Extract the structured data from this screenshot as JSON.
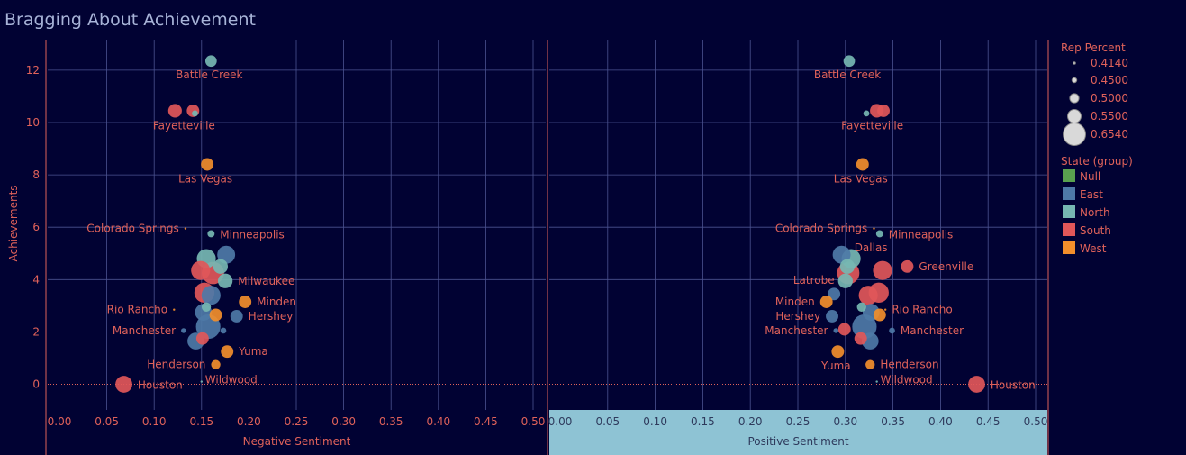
{
  "title": "Bragging About Achievement",
  "colors": {
    "background": "#010233",
    "grid": "#4b5290",
    "axis_text": "#e0625a",
    "highlight_band": "#8ec3d4",
    "Null": "#59a14f",
    "East": "#4e79a7",
    "North": "#76b7b2",
    "South": "#e15759",
    "West": "#f28e2b"
  },
  "legend": {
    "size_title": "Rep Percent",
    "size_items": [
      "0.4140",
      "0.4500",
      "0.5000",
      "0.5500",
      "0.6540"
    ],
    "color_title": "State (group)",
    "color_items": [
      "Null",
      "East",
      "North",
      "South",
      "West"
    ],
    "position": "right"
  },
  "chart_data": [
    {
      "type": "scatter",
      "xlabel": "Negative Sentiment",
      "ylabel": "Achievements",
      "xlim": [
        0,
        0.5
      ],
      "ylim": [
        -0.8,
        13
      ],
      "x_ticks": [
        "0.00",
        "0.05",
        "0.10",
        "0.15",
        "0.20",
        "0.25",
        "0.30",
        "0.35",
        "0.40",
        "0.45",
        "0.50"
      ],
      "y_ticks": [
        "0",
        "2",
        "4",
        "6",
        "8",
        "10",
        "12"
      ],
      "grid": true,
      "points": [
        {
          "x": 0.16,
          "y": 12.35,
          "size": 0.5,
          "group": "North",
          "label": "Battle Creek"
        },
        {
          "x": 0.122,
          "y": 10.45,
          "size": 0.52,
          "group": "South",
          "label": "Fayetteville"
        },
        {
          "x": 0.141,
          "y": 10.45,
          "size": 0.51,
          "group": "South",
          "label": ""
        },
        {
          "x": 0.143,
          "y": 10.35,
          "size": 0.45,
          "group": "North",
          "label": ""
        },
        {
          "x": 0.156,
          "y": 8.4,
          "size": 0.51,
          "group": "West",
          "label": "Las Vegas"
        },
        {
          "x": 0.133,
          "y": 5.95,
          "size": 0.414,
          "group": "West",
          "label": "Colorado Springs"
        },
        {
          "x": 0.16,
          "y": 5.75,
          "size": 0.46,
          "group": "North",
          "label": "Minneapolis"
        },
        {
          "x": 0.176,
          "y": 4.95,
          "size": 0.56,
          "group": "East",
          "label": ""
        },
        {
          "x": 0.155,
          "y": 4.8,
          "size": 0.57,
          "group": "North",
          "label": ""
        },
        {
          "x": 0.17,
          "y": 4.5,
          "size": 0.53,
          "group": "North",
          "label": ""
        },
        {
          "x": 0.149,
          "y": 4.35,
          "size": 0.57,
          "group": "South",
          "label": ""
        },
        {
          "x": 0.162,
          "y": 4.25,
          "size": 0.6,
          "group": "South",
          "label": ""
        },
        {
          "x": 0.175,
          "y": 3.95,
          "size": 0.53,
          "group": "North",
          "label": "Milwaukee"
        },
        {
          "x": 0.16,
          "y": 3.4,
          "size": 0.57,
          "group": "East",
          "label": ""
        },
        {
          "x": 0.153,
          "y": 3.5,
          "size": 0.58,
          "group": "South",
          "label": ""
        },
        {
          "x": 0.196,
          "y": 3.15,
          "size": 0.51,
          "group": "West",
          "label": "Minden"
        },
        {
          "x": 0.155,
          "y": 2.95,
          "size": 0.48,
          "group": "North",
          "label": ""
        },
        {
          "x": 0.121,
          "y": 2.85,
          "size": 0.414,
          "group": "West",
          "label": "Rio Rancho"
        },
        {
          "x": 0.152,
          "y": 2.75,
          "size": 0.55,
          "group": "East",
          "label": ""
        },
        {
          "x": 0.165,
          "y": 2.65,
          "size": 0.51,
          "group": "West",
          "label": ""
        },
        {
          "x": 0.187,
          "y": 2.6,
          "size": 0.51,
          "group": "East",
          "label": "Hershey"
        },
        {
          "x": 0.157,
          "y": 2.2,
          "size": 0.62,
          "group": "East",
          "label": ""
        },
        {
          "x": 0.173,
          "y": 2.05,
          "size": 0.45,
          "group": "East",
          "label": ""
        },
        {
          "x": 0.131,
          "y": 2.05,
          "size": 0.44,
          "group": "East",
          "label": "Manchester"
        },
        {
          "x": 0.144,
          "y": 1.65,
          "size": 0.55,
          "group": "East",
          "label": ""
        },
        {
          "x": 0.151,
          "y": 1.75,
          "size": 0.51,
          "group": "South",
          "label": ""
        },
        {
          "x": 0.177,
          "y": 1.25,
          "size": 0.51,
          "group": "West",
          "label": "Yuma"
        },
        {
          "x": 0.165,
          "y": 0.75,
          "size": 0.48,
          "group": "West",
          "label": "Henderson"
        },
        {
          "x": 0.15,
          "y": 0.1,
          "size": 0.414,
          "group": "North",
          "label": "Wildwood"
        },
        {
          "x": 0.068,
          "y": 0.0,
          "size": 0.55,
          "group": "South",
          "label": "Houston"
        }
      ]
    },
    {
      "type": "scatter",
      "xlabel": "Positive Sentiment",
      "ylabel": "",
      "xlim": [
        0,
        0.5
      ],
      "ylim": [
        -0.8,
        13
      ],
      "x_ticks": [
        "0.00",
        "0.05",
        "0.10",
        "0.15",
        "0.20",
        "0.25",
        "0.30",
        "0.35",
        "0.40",
        "0.45",
        "0.50"
      ],
      "grid": true,
      "points": [
        {
          "x": 0.304,
          "y": 12.35,
          "size": 0.5,
          "group": "North",
          "label": "Battle Creek"
        },
        {
          "x": 0.333,
          "y": 10.45,
          "size": 0.52,
          "group": "South",
          "label": "Fayetteville"
        },
        {
          "x": 0.34,
          "y": 10.45,
          "size": 0.51,
          "group": "South",
          "label": ""
        },
        {
          "x": 0.322,
          "y": 10.35,
          "size": 0.45,
          "group": "North",
          "label": ""
        },
        {
          "x": 0.318,
          "y": 8.4,
          "size": 0.51,
          "group": "West",
          "label": "Las Vegas"
        },
        {
          "x": 0.33,
          "y": 5.95,
          "size": 0.414,
          "group": "West",
          "label": "Colorado Springs"
        },
        {
          "x": 0.336,
          "y": 5.75,
          "size": 0.46,
          "group": "North",
          "label": "Minneapolis"
        },
        {
          "x": 0.296,
          "y": 4.95,
          "size": 0.56,
          "group": "East",
          "label": ""
        },
        {
          "x": 0.306,
          "y": 4.8,
          "size": 0.57,
          "group": "North",
          "label": "Dallas"
        },
        {
          "x": 0.302,
          "y": 4.5,
          "size": 0.53,
          "group": "North",
          "label": ""
        },
        {
          "x": 0.339,
          "y": 4.35,
          "size": 0.57,
          "group": "South",
          "label": ""
        },
        {
          "x": 0.303,
          "y": 4.25,
          "size": 0.6,
          "group": "South",
          "label": ""
        },
        {
          "x": 0.365,
          "y": 4.5,
          "size": 0.51,
          "group": "South",
          "label": "Greenville"
        },
        {
          "x": 0.3,
          "y": 3.95,
          "size": 0.53,
          "group": "North",
          "label": "Latrobe"
        },
        {
          "x": 0.288,
          "y": 3.45,
          "size": 0.51,
          "group": "East",
          "label": ""
        },
        {
          "x": 0.324,
          "y": 3.4,
          "size": 0.57,
          "group": "South",
          "label": ""
        },
        {
          "x": 0.335,
          "y": 3.5,
          "size": 0.58,
          "group": "South",
          "label": ""
        },
        {
          "x": 0.28,
          "y": 3.15,
          "size": 0.51,
          "group": "West",
          "label": "Minden"
        },
        {
          "x": 0.317,
          "y": 2.95,
          "size": 0.48,
          "group": "North",
          "label": ""
        },
        {
          "x": 0.342,
          "y": 2.85,
          "size": 0.414,
          "group": "West",
          "label": "Rio Rancho"
        },
        {
          "x": 0.327,
          "y": 2.75,
          "size": 0.55,
          "group": "East",
          "label": ""
        },
        {
          "x": 0.336,
          "y": 2.65,
          "size": 0.51,
          "group": "West",
          "label": ""
        },
        {
          "x": 0.286,
          "y": 2.6,
          "size": 0.51,
          "group": "East",
          "label": "Hershey"
        },
        {
          "x": 0.32,
          "y": 2.2,
          "size": 0.62,
          "group": "East",
          "label": ""
        },
        {
          "x": 0.29,
          "y": 2.05,
          "size": 0.44,
          "group": "East",
          "label": "Manchester"
        },
        {
          "x": 0.349,
          "y": 2.05,
          "size": 0.45,
          "group": "East",
          "label": "Manchester"
        },
        {
          "x": 0.299,
          "y": 2.1,
          "size": 0.51,
          "group": "South",
          "label": ""
        },
        {
          "x": 0.326,
          "y": 1.65,
          "size": 0.55,
          "group": "East",
          "label": ""
        },
        {
          "x": 0.316,
          "y": 1.75,
          "size": 0.51,
          "group": "South",
          "label": ""
        },
        {
          "x": 0.292,
          "y": 1.25,
          "size": 0.51,
          "group": "West",
          "label": "Yuma"
        },
        {
          "x": 0.326,
          "y": 0.75,
          "size": 0.48,
          "group": "West",
          "label": "Henderson"
        },
        {
          "x": 0.333,
          "y": 0.1,
          "size": 0.414,
          "group": "North",
          "label": "Wildwood"
        },
        {
          "x": 0.438,
          "y": 0.0,
          "size": 0.55,
          "group": "South",
          "label": "Houston"
        }
      ]
    }
  ]
}
